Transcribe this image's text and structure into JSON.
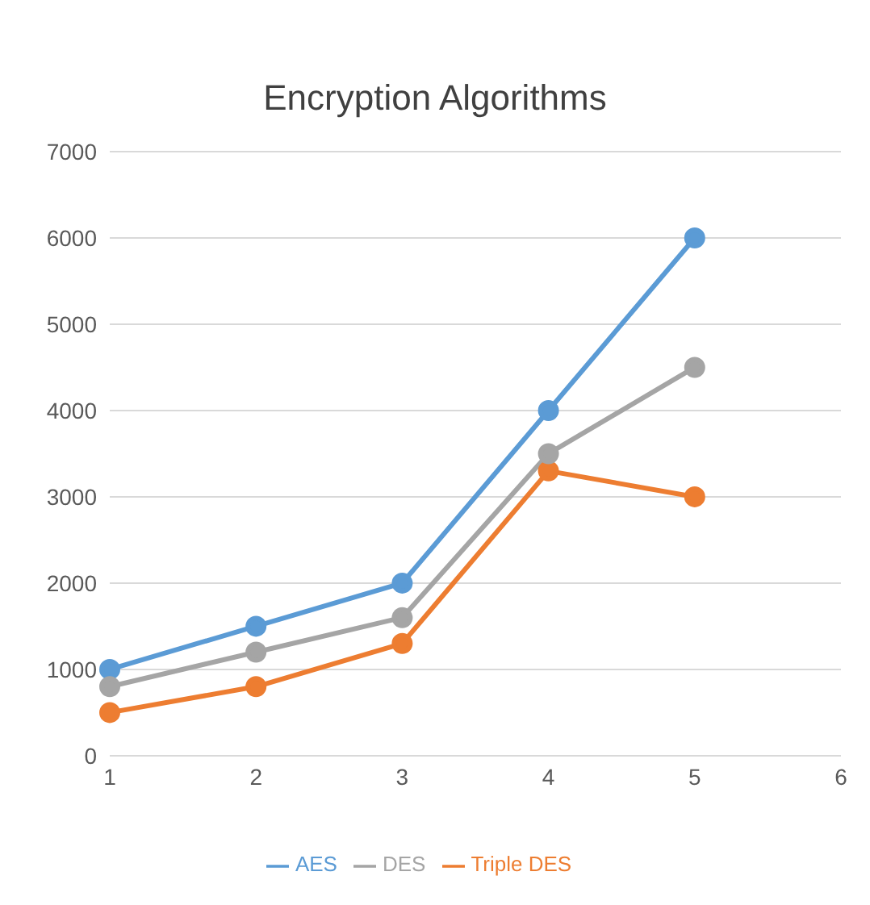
{
  "chart_data": {
    "type": "line",
    "title": "Encryption Algorithms",
    "categories": [
      "1",
      "2",
      "3",
      "4",
      "5",
      "6"
    ],
    "series": [
      {
        "name": "AES",
        "color": "#5b9bd5",
        "values": [
          1000,
          1500,
          2000,
          4000,
          6000,
          null
        ]
      },
      {
        "name": "Triple DES",
        "color": "#ed7d31",
        "values": [
          500,
          800,
          1300,
          3300,
          3000,
          null
        ]
      },
      {
        "name": "DES",
        "color": "#a5a5a5",
        "values": [
          800,
          1200,
          1600,
          3500,
          4500,
          null
        ]
      }
    ],
    "ylim": [
      0,
      7000
    ],
    "yticks": [
      0,
      1000,
      2000,
      3000,
      4000,
      5000,
      6000,
      7000
    ],
    "grid": "y",
    "legend": "bottom",
    "marker": "circle",
    "line_style": "solid"
  }
}
